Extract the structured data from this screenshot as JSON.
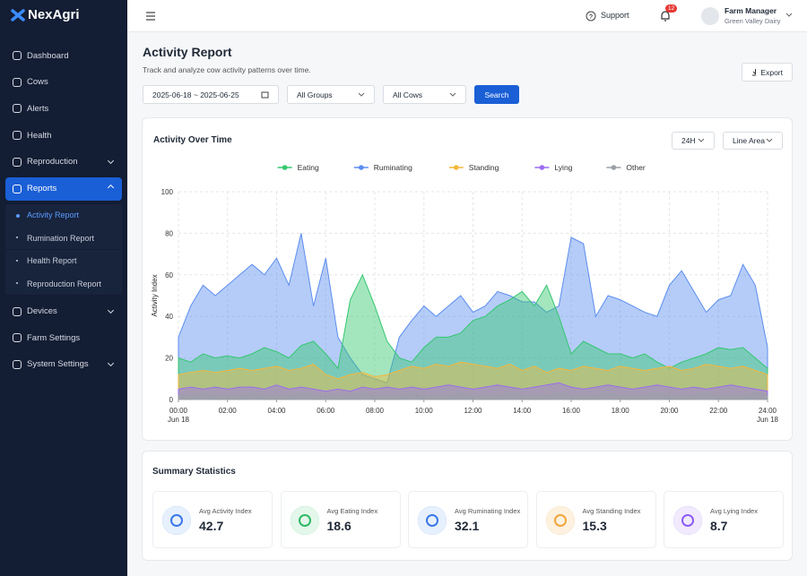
{
  "brand": "NexAgri",
  "nav": [
    {
      "label": "Dashboard"
    },
    {
      "label": "Cows"
    },
    {
      "label": "Alerts"
    },
    {
      "label": "Health"
    },
    {
      "label": "Reproduction",
      "expandable": true
    },
    {
      "label": "Reports",
      "expandable": true,
      "active": true,
      "children": [
        "Activity Report",
        "Rumination Report",
        "Health Report",
        "Reproduction Report"
      ],
      "active_child": 0
    },
    {
      "label": "Devices",
      "expandable": true
    },
    {
      "label": "Farm Settings"
    },
    {
      "label": "System Settings",
      "expandable": true
    }
  ],
  "topbar": {
    "support": "Support",
    "notifications": "12",
    "user_name": "Farm Manager",
    "user_farm": "Green Valley Dairy"
  },
  "page": {
    "title": "Activity Report",
    "subtitle": "Track and analyze cow activity patterns over time.",
    "export": "Export"
  },
  "filters": {
    "date_start": "2025-06-18",
    "date_sep": "~",
    "date_end": "2025-06-25",
    "group": "All Groups",
    "cows": "All Cows",
    "search": "Search"
  },
  "chart_card": {
    "title": "Activity Over Time",
    "range": "24H",
    "mode": "Line Area"
  },
  "chart_data": {
    "type": "area",
    "ylabel": "Activity Index",
    "x": [
      0,
      0.5,
      1,
      1.5,
      2,
      2.5,
      3,
      3.5,
      4,
      4.5,
      5,
      5.5,
      6,
      6.5,
      7,
      7.5,
      8,
      8.5,
      9,
      9.5,
      10,
      10.5,
      11,
      11.5,
      12,
      12.5,
      13,
      13.5,
      14,
      14.5,
      15,
      15.5,
      16,
      16.5,
      17,
      17.5,
      18,
      18.5,
      19,
      19.5,
      20,
      20.5,
      21,
      21.5,
      22,
      22.5,
      23,
      23.5,
      24
    ],
    "xlim": [
      0,
      24
    ],
    "xticks": [
      {
        "value": 0,
        "label": "00:00"
      },
      {
        "value": 2,
        "label": "02:00"
      },
      {
        "value": 4,
        "label": "04:00"
      },
      {
        "value": 6,
        "label": "06:00"
      },
      {
        "value": 8,
        "label": "08:00"
      },
      {
        "value": 10,
        "label": "10:00"
      },
      {
        "value": 12,
        "label": "12:00"
      },
      {
        "value": 14,
        "label": "14:00"
      },
      {
        "value": 16,
        "label": "16:00"
      },
      {
        "value": 18,
        "label": "18:00"
      },
      {
        "value": 20,
        "label": "20:00"
      },
      {
        "value": 22,
        "label": "22:00"
      },
      {
        "value": 24,
        "label": "24:00"
      }
    ],
    "x_date_labels": [
      "Jun 18",
      "Jun 18"
    ],
    "ylim": [
      0,
      100
    ],
    "yticks": [
      0,
      20,
      40,
      60,
      80,
      100
    ],
    "grid": true,
    "series": [
      {
        "name": "Eating",
        "color": "#34c76f",
        "values": [
          20,
          18,
          22,
          20,
          21,
          20,
          22,
          25,
          23,
          20,
          26,
          28,
          22,
          15,
          48,
          60,
          45,
          28,
          20,
          18,
          25,
          30,
          30,
          32,
          38,
          40,
          45,
          48,
          52,
          45,
          55,
          40,
          22,
          28,
          25,
          22,
          22,
          20,
          22,
          18,
          15,
          18,
          20,
          22,
          25,
          24,
          25,
          20,
          15
        ]
      },
      {
        "name": "Ruminating",
        "color": "#5b8def",
        "values": [
          30,
          45,
          55,
          50,
          55,
          60,
          65,
          60,
          68,
          55,
          80,
          45,
          68,
          30,
          20,
          12,
          10,
          8,
          30,
          38,
          45,
          40,
          45,
          50,
          42,
          45,
          52,
          50,
          47,
          47,
          42,
          45,
          78,
          75,
          40,
          50,
          48,
          45,
          42,
          40,
          55,
          62,
          52,
          42,
          48,
          50,
          65,
          55,
          25
        ]
      },
      {
        "name": "Standing",
        "color": "#f5b73b",
        "values": [
          12,
          13,
          14,
          13,
          14,
          15,
          14,
          15,
          16,
          14,
          15,
          17,
          12,
          10,
          12,
          13,
          11,
          12,
          14,
          16,
          15,
          17,
          16,
          18,
          17,
          16,
          15,
          17,
          14,
          16,
          13,
          15,
          14,
          16,
          15,
          14,
          16,
          15,
          14,
          15,
          16,
          14,
          15,
          17,
          16,
          15,
          16,
          14,
          12
        ]
      },
      {
        "name": "Lying",
        "color": "#9b6cf0",
        "values": [
          5,
          6,
          5,
          6,
          5,
          6,
          6,
          5,
          7,
          5,
          6,
          5,
          4,
          5,
          4,
          6,
          5,
          6,
          5,
          6,
          5,
          6,
          7,
          6,
          5,
          6,
          7,
          6,
          5,
          6,
          7,
          8,
          6,
          5,
          6,
          7,
          6,
          5,
          6,
          7,
          6,
          5,
          6,
          5,
          6,
          7,
          6,
          5,
          4
        ]
      },
      {
        "name": "Other",
        "color": "#9aa0a6",
        "values": [
          2,
          2,
          3,
          2,
          2,
          2,
          3,
          2,
          2,
          2,
          3,
          2,
          2,
          2,
          2,
          3,
          2,
          2,
          2,
          3,
          2,
          2,
          2,
          3,
          2,
          2,
          2,
          3,
          2,
          2,
          2,
          3,
          2,
          2,
          2,
          3,
          2,
          2,
          2,
          3,
          2,
          2,
          2,
          3,
          2,
          2,
          2,
          3,
          2
        ]
      }
    ]
  },
  "summary": {
    "title": "Summary Statistics",
    "stats": [
      {
        "label": "Avg Activity Index",
        "value": 42.7
      },
      {
        "label": "Avg Eating Index",
        "value": 18.6
      },
      {
        "label": "Avg Ruminating Index",
        "value": 32.1
      },
      {
        "label": "Avg Standing Index",
        "value": 15.3
      },
      {
        "label": "Avg Lying Index",
        "value": 8.7
      }
    ]
  }
}
